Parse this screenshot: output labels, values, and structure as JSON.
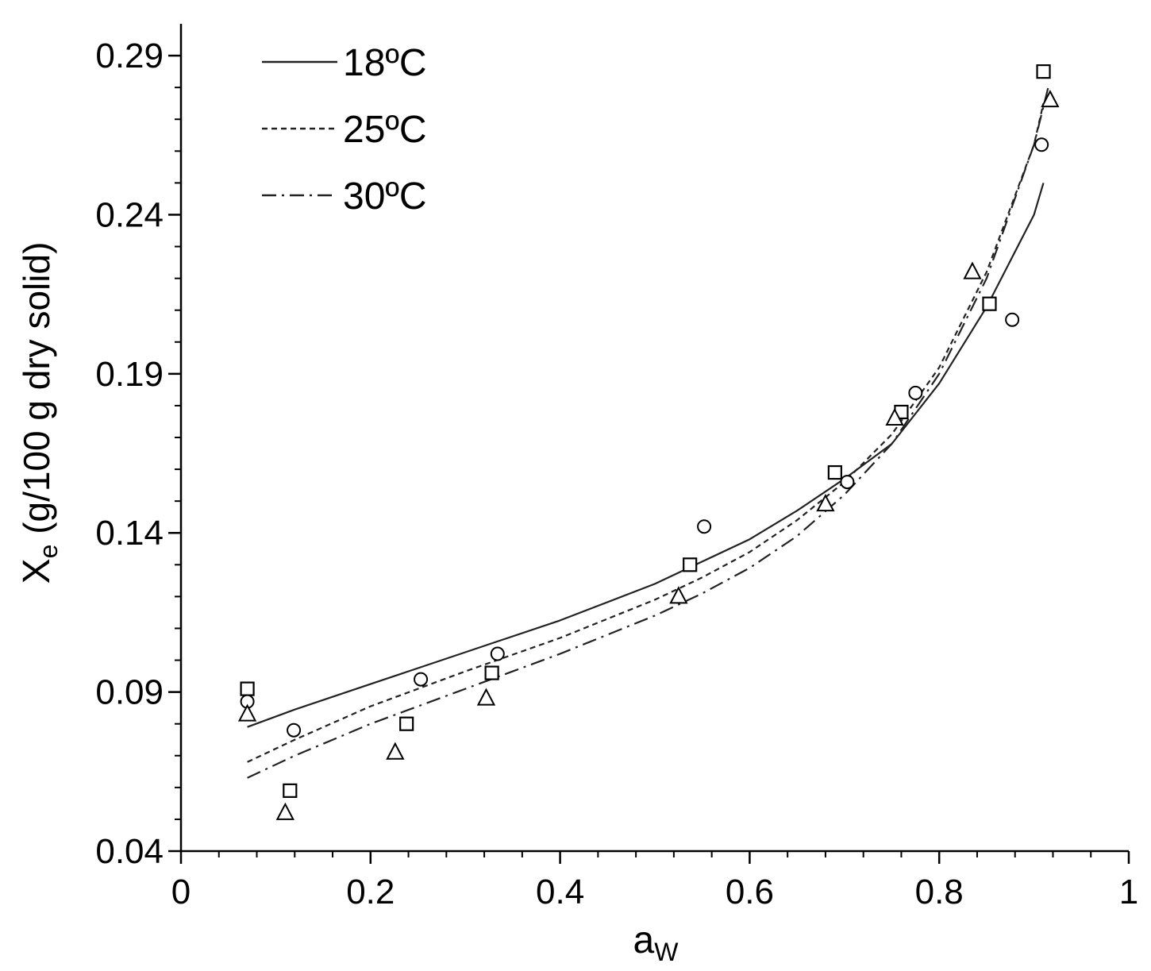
{
  "chart_data": {
    "type": "scatter",
    "title": "",
    "xlabel": {
      "main": "a",
      "sub": "W"
    },
    "ylabel": {
      "main": "X",
      "sub": "e",
      "rest": " (g/100 g dry solid)"
    },
    "xlim": [
      0,
      1
    ],
    "ylim": [
      0.04,
      0.3
    ],
    "x_ticks": [
      0,
      0.2,
      0.4,
      0.6,
      0.8,
      1
    ],
    "x_tick_labels": [
      "0",
      "0.2",
      "0.4",
      "0.6",
      "0.8",
      "1"
    ],
    "y_ticks": [
      0.04,
      0.09,
      0.14,
      0.19,
      0.24,
      0.29
    ],
    "y_tick_labels": [
      "0.04",
      "0.09",
      "0.14",
      "0.19",
      "0.24",
      "0.29"
    ],
    "grid": false,
    "legend_position": "top-left",
    "lines": [
      {
        "name": "18ºC",
        "style": "solid",
        "x": [
          0.07,
          0.12,
          0.2,
          0.3,
          0.4,
          0.5,
          0.55,
          0.6,
          0.65,
          0.7,
          0.75,
          0.8,
          0.85,
          0.9,
          0.91
        ],
        "y": [
          0.079,
          0.0845,
          0.0925,
          0.1025,
          0.1125,
          0.124,
          0.131,
          0.138,
          0.147,
          0.157,
          0.168,
          0.187,
          0.211,
          0.24,
          0.25
        ]
      },
      {
        "name": "25ºC",
        "style": "dashed",
        "x": [
          0.07,
          0.12,
          0.2,
          0.3,
          0.4,
          0.5,
          0.55,
          0.6,
          0.65,
          0.7,
          0.75,
          0.8,
          0.85,
          0.9,
          0.91
        ],
        "y": [
          0.068,
          0.075,
          0.0855,
          0.0965,
          0.107,
          0.119,
          0.126,
          0.134,
          0.144,
          0.156,
          0.171,
          0.192,
          0.222,
          0.262,
          0.275
        ]
      },
      {
        "name": "30ºC",
        "style": "dashdot",
        "x": [
          0.07,
          0.12,
          0.2,
          0.3,
          0.4,
          0.5,
          0.55,
          0.6,
          0.65,
          0.7,
          0.75,
          0.8,
          0.85,
          0.9,
          0.915
        ],
        "y": [
          0.063,
          0.07,
          0.08,
          0.091,
          0.102,
          0.114,
          0.121,
          0.129,
          0.139,
          0.152,
          0.168,
          0.19,
          0.22,
          0.262,
          0.28
        ]
      }
    ],
    "markers": [
      {
        "shape": "square",
        "x": [
          0.07,
          0.115,
          0.238,
          0.328,
          0.537,
          0.69,
          0.76,
          0.853,
          0.91
        ],
        "y": [
          0.091,
          0.059,
          0.08,
          0.096,
          0.13,
          0.159,
          0.178,
          0.212,
          0.285
        ]
      },
      {
        "shape": "circle",
        "x": [
          0.07,
          0.119,
          0.253,
          0.334,
          0.552,
          0.703,
          0.775,
          0.877,
          0.908
        ],
        "y": [
          0.087,
          0.078,
          0.094,
          0.102,
          0.142,
          0.156,
          0.184,
          0.207,
          0.262
        ]
      },
      {
        "shape": "triangle",
        "x": [
          0.07,
          0.11,
          0.226,
          0.322,
          0.525,
          0.68,
          0.753,
          0.835,
          0.917
        ],
        "y": [
          0.083,
          0.052,
          0.071,
          0.088,
          0.12,
          0.149,
          0.176,
          0.222,
          0.276
        ]
      }
    ]
  }
}
